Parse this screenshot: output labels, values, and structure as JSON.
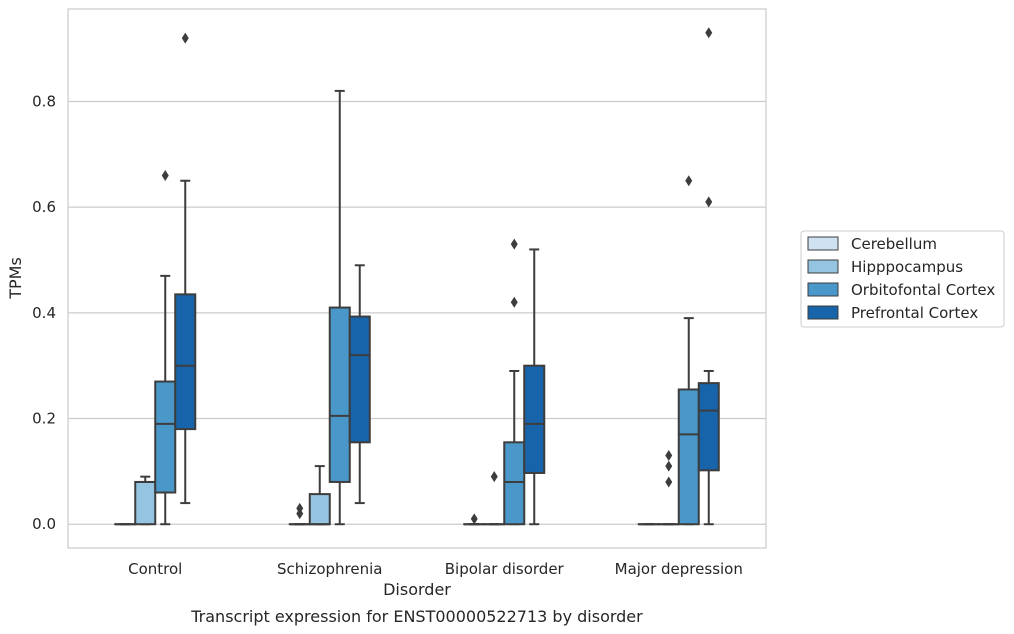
{
  "chart_data": {
    "type": "box",
    "caption": "Transcript expression for ENST00000522713 by disorder",
    "xlabel": "Disorder",
    "ylabel": "TPMs",
    "ylim": [
      -0.045,
      0.975
    ],
    "yticks": [
      0.0,
      0.2,
      0.4,
      0.6,
      0.8
    ],
    "ytick_labels": [
      "0.0",
      "0.2",
      "0.4",
      "0.6",
      "0.8"
    ],
    "grid": "horizontal",
    "legend_position": "right",
    "categories": [
      "Control",
      "Schizophrenia",
      "Bipolar disorder",
      "Major depression"
    ],
    "series": [
      {
        "name": "Cerebellum",
        "color": "#d0e1f2",
        "boxes": [
          {
            "whisker_low": 0.0,
            "q1": 0.0,
            "median": 0.0,
            "q3": 0.0,
            "whisker_high": 0.0,
            "outliers": []
          },
          {
            "whisker_low": 0.0,
            "q1": 0.0,
            "median": 0.0,
            "q3": 0.0,
            "whisker_high": 0.0,
            "outliers": [
              0.02,
              0.03
            ]
          },
          {
            "whisker_low": 0.0,
            "q1": 0.0,
            "median": 0.0,
            "q3": 0.0,
            "whisker_high": 0.0,
            "outliers": [
              0.01
            ]
          },
          {
            "whisker_low": 0.0,
            "q1": 0.0,
            "median": 0.0,
            "q3": 0.0,
            "whisker_high": 0.0,
            "outliers": []
          }
        ]
      },
      {
        "name": "Hipppocampus",
        "color": "#94c4df",
        "boxes": [
          {
            "whisker_low": 0.0,
            "q1": 0.0,
            "median": 0.08,
            "q3": 0.08,
            "whisker_high": 0.09,
            "outliers": []
          },
          {
            "whisker_low": 0.0,
            "q1": 0.0,
            "median": 0.0,
            "q3": 0.057,
            "whisker_high": 0.11,
            "outliers": []
          },
          {
            "whisker_low": 0.0,
            "q1": 0.0,
            "median": 0.0,
            "q3": 0.0,
            "whisker_high": 0.0,
            "outliers": [
              0.09
            ]
          },
          {
            "whisker_low": 0.0,
            "q1": 0.0,
            "median": 0.0,
            "q3": 0.0,
            "whisker_high": 0.0,
            "outliers": [
              0.08,
              0.11,
              0.13
            ]
          }
        ]
      },
      {
        "name": "Orbitofontal Cortex",
        "color": "#4a98c9",
        "boxes": [
          {
            "whisker_low": 0.0,
            "q1": 0.06,
            "median": 0.19,
            "q3": 0.27,
            "whisker_high": 0.47,
            "outliers": [
              0.66
            ]
          },
          {
            "whisker_low": 0.0,
            "q1": 0.08,
            "median": 0.205,
            "q3": 0.41,
            "whisker_high": 0.82,
            "outliers": []
          },
          {
            "whisker_low": 0.0,
            "q1": 0.0,
            "median": 0.08,
            "q3": 0.155,
            "whisker_high": 0.29,
            "outliers": [
              0.42,
              0.53
            ]
          },
          {
            "whisker_low": 0.0,
            "q1": 0.0,
            "median": 0.17,
            "q3": 0.255,
            "whisker_high": 0.39,
            "outliers": [
              0.65
            ]
          }
        ]
      },
      {
        "name": "Prefrontal Cortex",
        "color": "#1764ab",
        "boxes": [
          {
            "whisker_low": 0.04,
            "q1": 0.18,
            "median": 0.3,
            "q3": 0.435,
            "whisker_high": 0.65,
            "outliers": [
              0.92
            ]
          },
          {
            "whisker_low": 0.04,
            "q1": 0.155,
            "median": 0.32,
            "q3": 0.393,
            "whisker_high": 0.49,
            "outliers": []
          },
          {
            "whisker_low": 0.0,
            "q1": 0.097,
            "median": 0.19,
            "q3": 0.3,
            "whisker_high": 0.52,
            "outliers": []
          },
          {
            "whisker_low": 0.0,
            "q1": 0.102,
            "median": 0.215,
            "q3": 0.267,
            "whisker_high": 0.29,
            "outliers": [
              0.61,
              0.93
            ]
          }
        ]
      }
    ]
  }
}
